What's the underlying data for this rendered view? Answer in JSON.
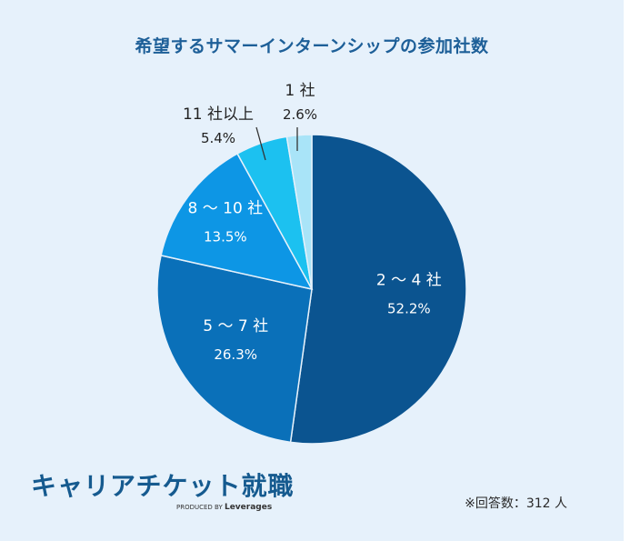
{
  "chart_data": {
    "type": "pie",
    "title": "希望するサマーインターンシップの参加社数",
    "slices": [
      {
        "label": "2 ～ 4 社",
        "value": 52.2,
        "value_label": "52.2%",
        "color": "#0b5490",
        "text_color": "#ffffff"
      },
      {
        "label": "5 ～ 7 社",
        "value": 26.3,
        "value_label": "26.3%",
        "color": "#0a70b9",
        "text_color": "#ffffff"
      },
      {
        "label": "8 ～ 10 社",
        "value": 13.5,
        "value_label": "13.5%",
        "color": "#0d96e5",
        "text_color": "#ffffff"
      },
      {
        "label": "11 社以上",
        "value": 5.4,
        "value_label": "5.4%",
        "color": "#1cc1f0",
        "text_color": "#222222"
      },
      {
        "label": "1 社",
        "value": 2.6,
        "value_label": "2.6%",
        "color": "#a9e4f8",
        "text_color": "#222222"
      }
    ]
  },
  "footer": {
    "brand_name": "キャリアチケット就職",
    "brand_tagline_prefix": "PRODUCED BY",
    "brand_tagline_company": "Leverages",
    "respondents_note": "※回答数：312 人"
  }
}
